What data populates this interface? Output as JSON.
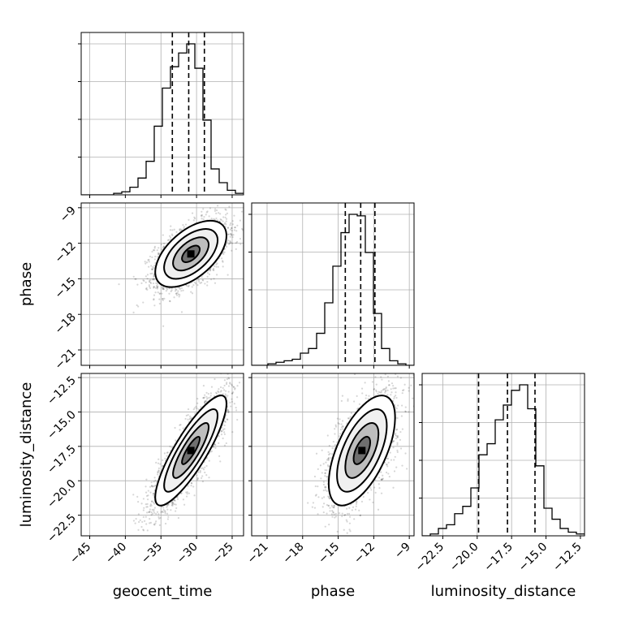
{
  "chart_data": {
    "type": "corner",
    "parameters": [
      "geocent_time",
      "phase",
      "luminosity_distance"
    ],
    "ranges": {
      "geocent_time": [
        -46.2,
        -23.4
      ],
      "phase": [
        -22.3,
        -8.6
      ],
      "luminosity_distance": [
        -24.0,
        -12.2
      ]
    },
    "ticks": {
      "geocent_time": [
        -45,
        -40,
        -35,
        -30,
        -25
      ],
      "phase": [
        -21,
        -18,
        -15,
        -12,
        -9
      ],
      "luminosity_distance": [
        -22.5,
        -20.0,
        -17.5,
        -15.0,
        -12.5
      ]
    },
    "tick_labels": {
      "geocent_time": [
        "−45",
        "−40",
        "−35",
        "−30",
        "−25"
      ],
      "phase": [
        "−21",
        "−18",
        "−15",
        "−12",
        "−9"
      ],
      "luminosity_distance": [
        "−22.5",
        "−20.0",
        "−17.5",
        "−15.0",
        "−12.5"
      ]
    },
    "quantiles": {
      "geocent_time": [
        -33.4,
        -31.1,
        -28.9
      ],
      "phase": [
        -14.4,
        -13.1,
        -11.9
      ],
      "luminosity_distance": [
        -19.9,
        -17.8,
        -15.8
      ]
    },
    "histograms": {
      "geocent_time": {
        "edges": [
          -46.2,
          -45.06,
          -43.92,
          -42.78,
          -41.64,
          -40.5,
          -39.36,
          -38.22,
          -37.08,
          -35.94,
          -34.8,
          -33.66,
          -32.52,
          -31.38,
          -30.24,
          -29.1,
          -27.96,
          -26.82,
          -25.68,
          -24.54,
          -23.4
        ],
        "counts": [
          0,
          0,
          0,
          0,
          0.01,
          0.02,
          0.05,
          0.11,
          0.22,
          0.45,
          0.7,
          0.84,
          0.93,
          0.99,
          0.83,
          0.49,
          0.17,
          0.08,
          0.03,
          0.01
        ]
      },
      "phase": {
        "edges": [
          -22.3,
          -21.615,
          -20.93,
          -20.245,
          -19.56,
          -18.875,
          -18.19,
          -17.505,
          -16.82,
          -16.135,
          -15.45,
          -14.765,
          -14.08,
          -13.395,
          -12.71,
          -12.025,
          -11.34,
          -10.655,
          -9.97,
          -9.285,
          -8.6
        ],
        "counts": [
          0,
          0,
          0.01,
          0.02,
          0.03,
          0.04,
          0.08,
          0.11,
          0.21,
          0.41,
          0.65,
          0.87,
          0.99,
          0.98,
          0.74,
          0.34,
          0.11,
          0.03,
          0.01,
          0
        ]
      },
      "luminosity_distance": {
        "edges": [
          -24.0,
          -23.41,
          -22.82,
          -22.23,
          -21.64,
          -21.05,
          -20.46,
          -19.87,
          -19.28,
          -18.69,
          -18.1,
          -17.51,
          -16.92,
          -16.33,
          -15.74,
          -15.15,
          -14.56,
          -13.97,
          -13.38,
          -12.79,
          -12.2
        ],
        "counts": [
          0,
          0.01,
          0.04,
          0.06,
          0.12,
          0.16,
          0.26,
          0.44,
          0.5,
          0.63,
          0.71,
          0.79,
          0.82,
          0.69,
          0.38,
          0.15,
          0.09,
          0.04,
          0.02,
          0.01
        ]
      }
    },
    "pairs": [
      {
        "x": "geocent_time",
        "y": "phase",
        "mean": [
          -30.8,
          -12.9
        ],
        "std": [
          2.5,
          1.4
        ],
        "corr": 0.55
      },
      {
        "x": "geocent_time",
        "y": "luminosity_distance",
        "mean": [
          -30.8,
          -17.8
        ],
        "std": [
          2.5,
          2.0
        ],
        "corr": 0.85
      },
      {
        "x": "phase",
        "y": "luminosity_distance",
        "mean": [
          -13.0,
          -17.8
        ],
        "std": [
          1.4,
          2.0
        ],
        "corr": 0.6
      }
    ],
    "contour_levels_sigma": [
      0.5,
      1.0,
      1.5,
      2.0
    ],
    "grid": true,
    "colors": {
      "line": "#000000",
      "grid": "#b0b0b0",
      "scatter": "#000000",
      "quantile": "#000000"
    }
  }
}
